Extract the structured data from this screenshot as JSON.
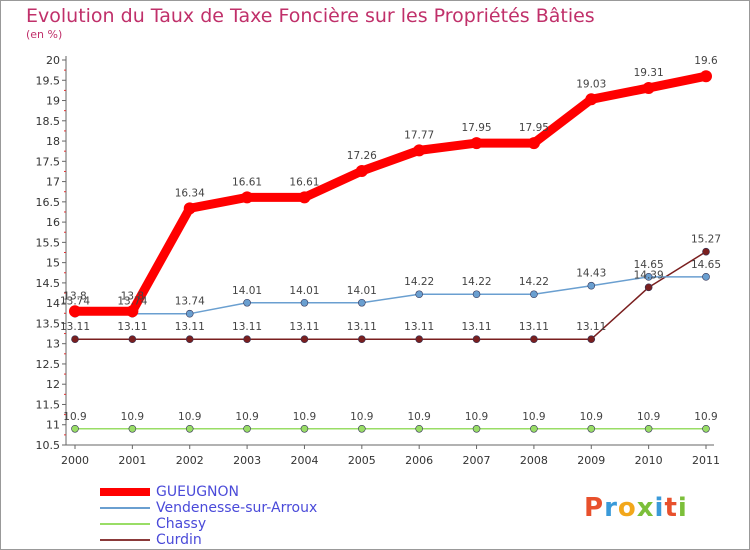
{
  "chart_data": {
    "type": "line",
    "title": "Evolution du Taux de Taxe Foncière sur les Propriétés Bâties",
    "ylabel": "(en %)",
    "x": [
      "2000",
      "2001",
      "2002",
      "2003",
      "2004",
      "2005",
      "2006",
      "2007",
      "2008",
      "2009",
      "2010",
      "2011"
    ],
    "ylim": [
      10.5,
      20
    ],
    "yticks": [
      "10.5",
      "11",
      "11.5",
      "12",
      "12.5",
      "13",
      "13.5",
      "14",
      "14.5",
      "15",
      "15.5",
      "16",
      "16.5",
      "17",
      "17.5",
      "18",
      "18.5",
      "19",
      "19.5",
      "20"
    ],
    "grid": false,
    "legend_position": "bottom-left",
    "series": [
      {
        "name": "GUEUGNON",
        "color": "#ff0000",
        "values": [
          13.8,
          13.8,
          16.34,
          16.61,
          16.61,
          17.26,
          17.77,
          17.95,
          17.95,
          19.03,
          19.31,
          19.6
        ],
        "labels": [
          "13.8",
          "13.8",
          "16.34",
          "16.61",
          "16.61",
          "17.26",
          "17.77",
          "17.95",
          "17.95",
          "19.03",
          "19.31",
          "19.6"
        ]
      },
      {
        "name": "Vendenesse-sur-Arroux",
        "color": "#6a9fd0",
        "values": [
          13.74,
          13.74,
          13.74,
          14.01,
          14.01,
          14.01,
          14.22,
          14.22,
          14.22,
          14.43,
          14.65,
          14.65
        ],
        "labels": [
          "13.74",
          "13.74",
          "13.74",
          "14.01",
          "14.01",
          "14.01",
          "14.22",
          "14.22",
          "14.22",
          "14.43",
          "14.65",
          "14.65"
        ]
      },
      {
        "name": "Chassy",
        "color": "#99dd66",
        "values": [
          10.9,
          10.9,
          10.9,
          10.9,
          10.9,
          10.9,
          10.9,
          10.9,
          10.9,
          10.9,
          10.9,
          10.9
        ],
        "labels": [
          "10.9",
          "10.9",
          "10.9",
          "10.9",
          "10.9",
          "10.9",
          "10.9",
          "10.9",
          "10.9",
          "10.9",
          "10.9",
          "10.9"
        ]
      },
      {
        "name": "Curdin",
        "color": "#7a1f1f",
        "values": [
          13.11,
          13.11,
          13.11,
          13.11,
          13.11,
          13.11,
          13.11,
          13.11,
          13.11,
          13.11,
          14.39,
          15.27
        ],
        "labels": [
          "13.11",
          "13.11",
          "13.11",
          "13.11",
          "13.11",
          "13.11",
          "13.11",
          "13.11",
          "13.11",
          "13.11",
          "14.39",
          "15.27"
        ]
      }
    ]
  },
  "logo": {
    "text": "Proxiti",
    "letter_colors": [
      "#e8502c",
      "#3a9ad9",
      "#f2a71b",
      "#7cbf3a",
      "#3a9ad9",
      "#e8502c",
      "#7cbf3a"
    ]
  }
}
